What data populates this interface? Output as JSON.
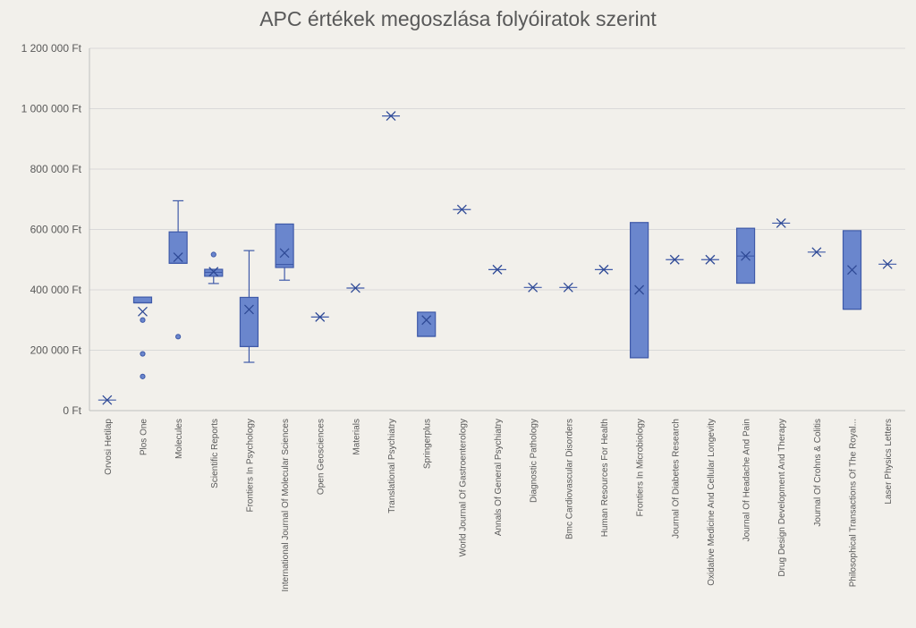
{
  "chart_data": {
    "type": "box",
    "title": "APC értékek megoszlása folyóiratok szerint",
    "y_axis": {
      "min": 0,
      "max": 1200000,
      "ticks": [
        0,
        200000,
        400000,
        600000,
        800000,
        1000000,
        1200000
      ],
      "tick_labels": [
        "0 Ft",
        "200 000 Ft",
        "400 000 Ft",
        "600 000 Ft",
        "800 000 Ft",
        "1 000 000 Ft",
        "1 200 000 Ft"
      ]
    },
    "grid": true,
    "categories": [
      {
        "name": "Orvosi Hetilap",
        "mean": 35000
      },
      {
        "name": "Plos One",
        "q1": 357000,
        "median": 357000,
        "q3": 376000,
        "mean": 328000,
        "outliers": [
          300000,
          188000,
          113000
        ]
      },
      {
        "name": "Molecules",
        "q1": 488000,
        "median": 488000,
        "q3": 592000,
        "whisker_high": 695000,
        "mean": 508000,
        "outliers": [
          245000
        ]
      },
      {
        "name": "Scientific Reports",
        "q1": 445000,
        "median": 458000,
        "q3": 468000,
        "whisker_low": 421000,
        "mean": 460000,
        "outliers": [
          517000
        ]
      },
      {
        "name": "Frontiers In Psychology",
        "q1": 212000,
        "median": 212000,
        "q3": 375000,
        "whisker_low": 160000,
        "whisker_high": 530000,
        "mean": 335000
      },
      {
        "name": "International Journal Of Molecular Sciences",
        "q1": 474000,
        "median": 484000,
        "q3": 618000,
        "whisker_low": 432000,
        "mean": 522000
      },
      {
        "name": "Open Geosciences",
        "mean": 310000
      },
      {
        "name": "Materials",
        "mean": 406000
      },
      {
        "name": "Translational Psychiatry",
        "mean": 976000
      },
      {
        "name": "Springerplus",
        "q1": 246000,
        "median": 246000,
        "q3": 326000,
        "mean": 300000
      },
      {
        "name": "World Journal Of Gastroenterology",
        "mean": 666000
      },
      {
        "name": "Annals Of General Psychiatry",
        "mean": 467000
      },
      {
        "name": "Diagnostic Pathology",
        "mean": 408000
      },
      {
        "name": "Bmc Cardiovascular Disorders",
        "mean": 408000
      },
      {
        "name": "Human Resources For Health",
        "mean": 467000
      },
      {
        "name": "Frontiers In Microbiology",
        "q1": 175000,
        "median": 175000,
        "q3": 623000,
        "mean": 400000
      },
      {
        "name": "Journal Of Diabetes Research",
        "mean": 500000
      },
      {
        "name": "Oxidative Medicine And Cellular Longevity",
        "mean": 500000
      },
      {
        "name": "Journal Of Headache And Pain",
        "q1": 422000,
        "median": 512000,
        "q3": 604000,
        "mean": 512000
      },
      {
        "name": "Drug Design Development And Therapy",
        "mean": 621000
      },
      {
        "name": "Journal Of Crohns & Colitis",
        "mean": 525000
      },
      {
        "name": "Philosophical Transactions Of The Royal...",
        "q1": 336000,
        "median": 336000,
        "q3": 596000,
        "mean": 466000
      },
      {
        "name": "Laser Physics Letters",
        "mean": 485000
      }
    ]
  },
  "colors": {
    "background": "#f2f0eb",
    "box_fill": "#6a86cd",
    "box_stroke": "#3f5aa8"
  }
}
